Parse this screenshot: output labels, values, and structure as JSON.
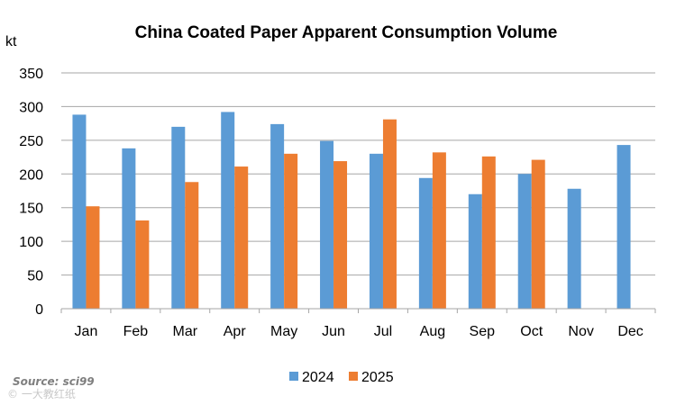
{
  "chart_data": {
    "type": "bar",
    "title": "China Coated Paper Apparent Consumption Volume",
    "ylabel": "kt",
    "xlabel": "",
    "categories": [
      "Jan",
      "Feb",
      "Mar",
      "Apr",
      "May",
      "Jun",
      "Jul",
      "Aug",
      "Sep",
      "Oct",
      "Nov",
      "Dec"
    ],
    "series": [
      {
        "name": "2024",
        "color": "#5B9BD5",
        "values": [
          288,
          238,
          270,
          292,
          274,
          249,
          230,
          194,
          170,
          200,
          178,
          243
        ]
      },
      {
        "name": "2025",
        "color": "#ED7D31",
        "values": [
          152,
          131,
          188,
          211,
          230,
          219,
          281,
          232,
          226,
          221,
          null,
          null
        ]
      }
    ],
    "ylim": [
      0,
      350
    ],
    "yticks": [
      0,
      50,
      100,
      150,
      200,
      250,
      300,
      350
    ],
    "grid": true,
    "legend": "bottom-center"
  },
  "source_text": "Source: sci99",
  "footer_text": "© 一大教红纸"
}
